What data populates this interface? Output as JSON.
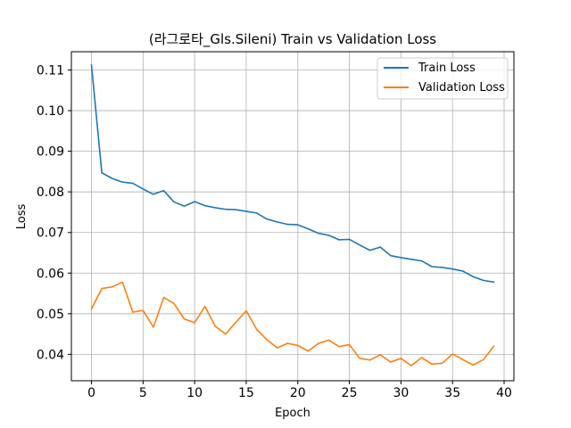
{
  "chart_data": {
    "type": "line",
    "title": "(라그로타_Gls.Sileni) Train vs Validation Loss",
    "xlabel": "Epoch",
    "ylabel": "Loss",
    "xlim": [
      -1.95,
      40.95
    ],
    "ylim": [
      0.0335,
      0.1145
    ],
    "x_ticks": [
      0,
      5,
      10,
      15,
      20,
      25,
      30,
      35,
      40
    ],
    "y_ticks": [
      0.04,
      0.05,
      0.06,
      0.07,
      0.08,
      0.09,
      0.1,
      0.11
    ],
    "y_tick_labels": [
      "0.04",
      "0.05",
      "0.06",
      "0.07",
      "0.08",
      "0.09",
      "0.10",
      "0.11"
    ],
    "grid": true,
    "legend_position": "top-right",
    "x": [
      0,
      1,
      2,
      3,
      4,
      5,
      6,
      7,
      8,
      9,
      10,
      11,
      12,
      13,
      14,
      15,
      16,
      17,
      18,
      19,
      20,
      21,
      22,
      23,
      24,
      25,
      26,
      27,
      28,
      29,
      30,
      31,
      32,
      33,
      34,
      35,
      36,
      37,
      38,
      39
    ],
    "series": [
      {
        "name": "Train Loss",
        "color": "#1f77b4",
        "values": [
          0.1112,
          0.0847,
          0.0833,
          0.0824,
          0.0821,
          0.0807,
          0.0794,
          0.0803,
          0.0775,
          0.0765,
          0.0776,
          0.0766,
          0.0761,
          0.0757,
          0.0756,
          0.0752,
          0.0748,
          0.0733,
          0.0726,
          0.072,
          0.0719,
          0.0709,
          0.0698,
          0.0693,
          0.0682,
          0.0683,
          0.0669,
          0.0656,
          0.0664,
          0.0643,
          0.0638,
          0.0634,
          0.063,
          0.0616,
          0.0614,
          0.061,
          0.0605,
          0.0591,
          0.0582,
          0.0578
        ]
      },
      {
        "name": "Validation Loss",
        "color": "#ff7f0e",
        "values": [
          0.0512,
          0.0562,
          0.0566,
          0.0578,
          0.0504,
          0.0508,
          0.0467,
          0.054,
          0.0525,
          0.0487,
          0.0478,
          0.0518,
          0.0469,
          0.045,
          0.0479,
          0.0507,
          0.0462,
          0.0436,
          0.0416,
          0.0427,
          0.0422,
          0.0408,
          0.0427,
          0.0435,
          0.0419,
          0.0424,
          0.039,
          0.0386,
          0.0399,
          0.0381,
          0.039,
          0.0372,
          0.0392,
          0.0376,
          0.0378,
          0.0401,
          0.0387,
          0.0374,
          0.0387,
          0.042
        ]
      }
    ]
  }
}
